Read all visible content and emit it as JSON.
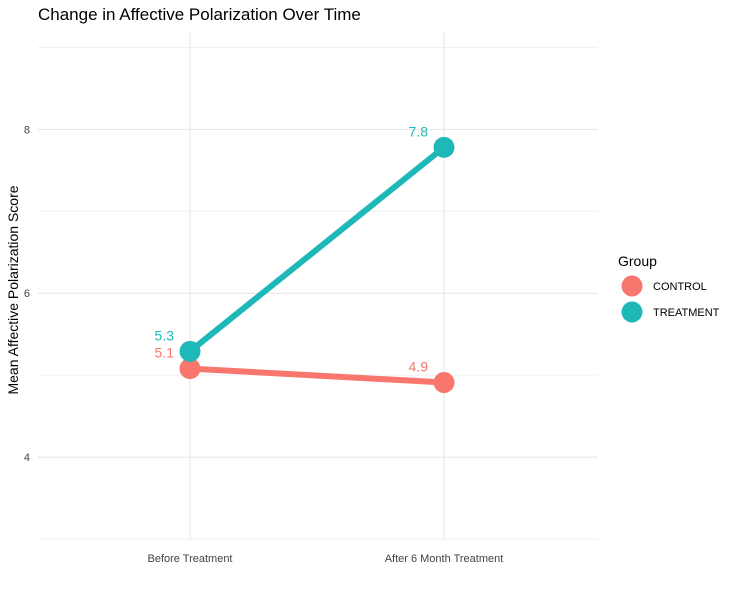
{
  "chart_data": {
    "type": "line",
    "title": "Change in Affective Polarization Over Time",
    "xlabel": "",
    "ylabel": "Mean Affective Polarization Score",
    "categories": [
      "Before Treatment",
      "After 6 Month Treatment"
    ],
    "ylim": [
      3,
      9.2
    ],
    "yticks": [
      4,
      6,
      8
    ],
    "grid": true,
    "legend": {
      "title": "Group",
      "position": "right"
    },
    "series": [
      {
        "name": "CONTROL",
        "color": "#F8766D",
        "values": [
          5.08,
          4.91
        ],
        "labels": [
          "5.1",
          "4.9"
        ]
      },
      {
        "name": "TREATMENT",
        "color": "#1FB8B8",
        "values": [
          5.29,
          7.78
        ],
        "labels": [
          "5.3",
          "7.8"
        ]
      }
    ]
  }
}
